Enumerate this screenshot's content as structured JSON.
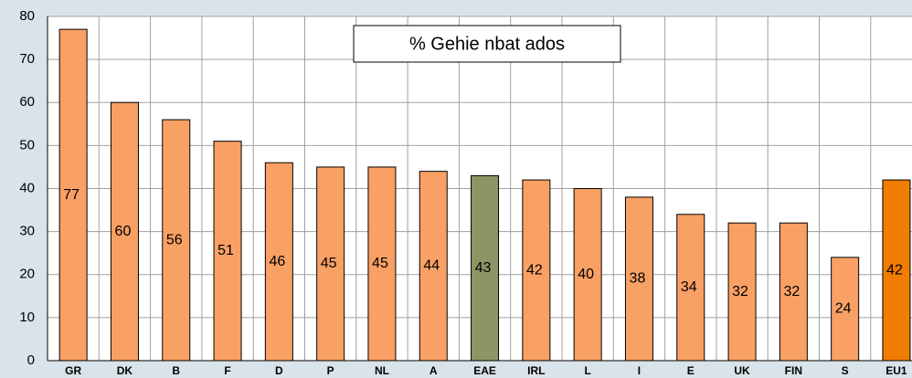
{
  "chart_data": {
    "type": "bar",
    "title": "% Gehie nbat ados",
    "categories": [
      "GR",
      "DK",
      "B",
      "F",
      "D",
      "P",
      "NL",
      "A",
      "EAE",
      "IRL",
      "L",
      "I",
      "E",
      "UK",
      "FIN",
      "S",
      "EU1"
    ],
    "values": [
      77,
      60,
      56,
      51,
      46,
      45,
      45,
      44,
      43,
      42,
      40,
      38,
      34,
      32,
      32,
      24,
      42
    ],
    "colors": [
      "#f9a065",
      "#f9a065",
      "#f9a065",
      "#f9a065",
      "#f9a065",
      "#f9a065",
      "#f9a065",
      "#f9a065",
      "#8f9467",
      "#f9a065",
      "#f9a065",
      "#f9a065",
      "#f9a065",
      "#f9a065",
      "#f9a065",
      "#f9a065",
      "#f07c00"
    ],
    "ylim": [
      0,
      80
    ],
    "yticks": [
      0,
      10,
      20,
      30,
      40,
      50,
      60,
      70,
      80
    ],
    "grid": true
  }
}
